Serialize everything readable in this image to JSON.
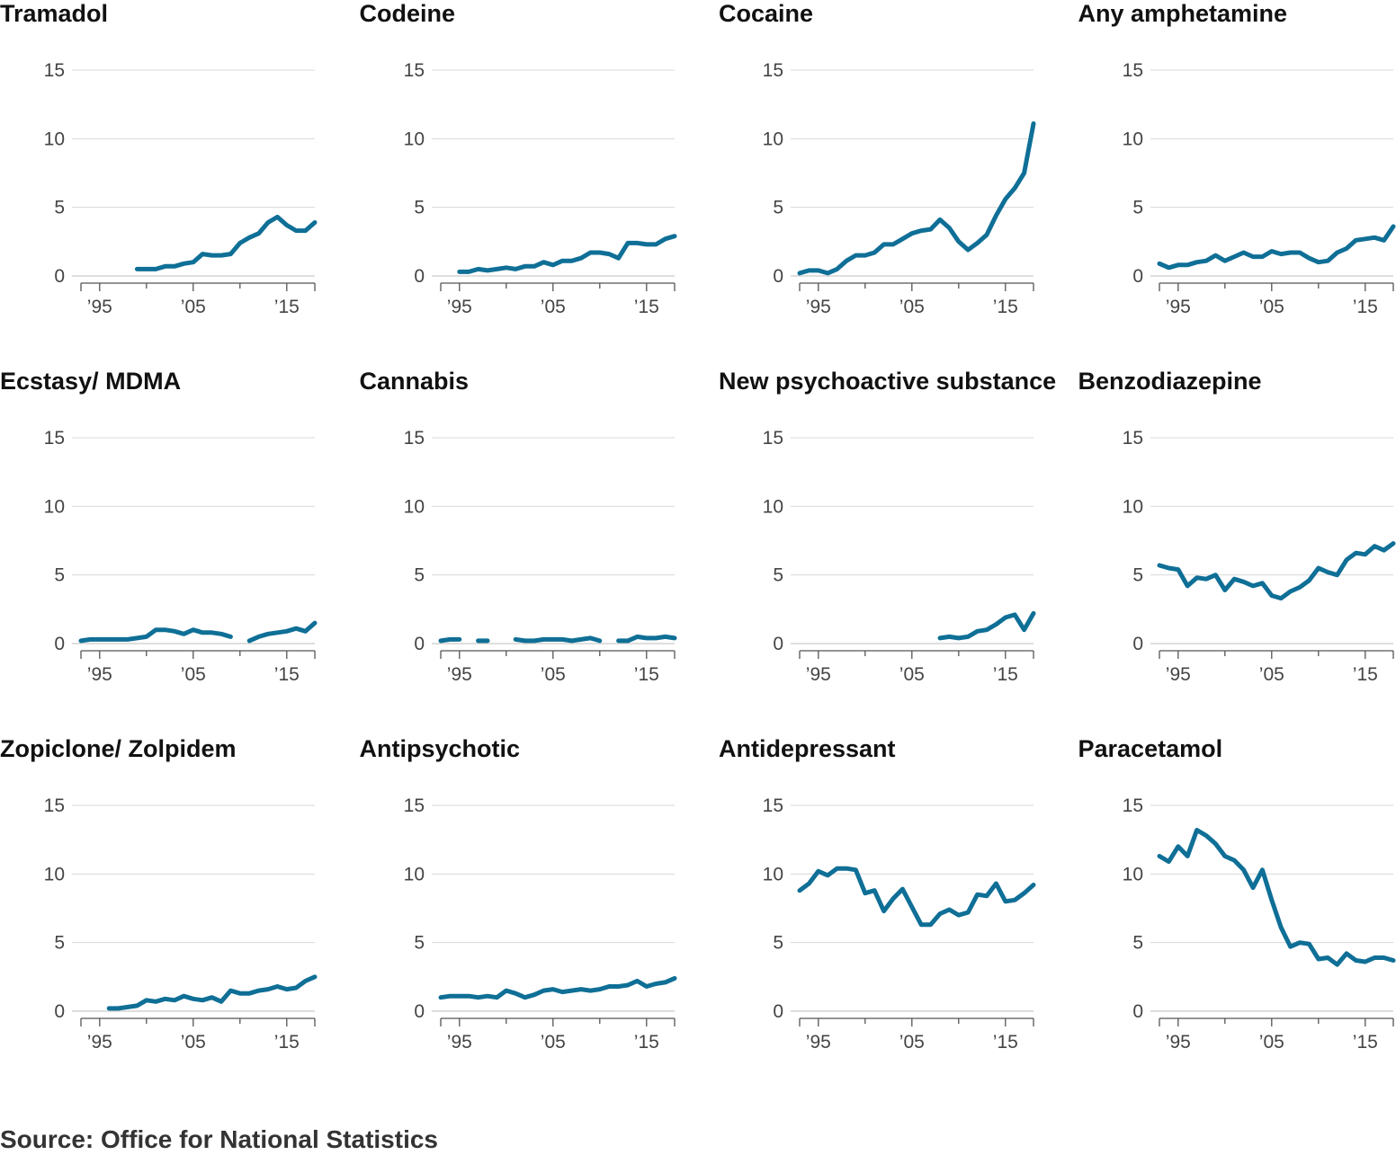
{
  "source": "Source: Office for National Statistics",
  "colors": {
    "line": "#0f6f96",
    "grid": "#d9d9d9",
    "axis": "#555555"
  },
  "chart_data": [
    {
      "type": "line",
      "title": "Tramadol",
      "ylim": [
        0,
        15
      ],
      "yticks": [
        0,
        5,
        10,
        15
      ],
      "xlim": [
        1993,
        2018
      ],
      "xticks": [
        1995,
        2005,
        2015
      ],
      "xtick_labels": [
        "’95",
        "’05",
        "’15"
      ],
      "x": [
        1993,
        1994,
        1995,
        1996,
        1997,
        1998,
        1999,
        2000,
        2001,
        2002,
        2003,
        2004,
        2005,
        2006,
        2007,
        2008,
        2009,
        2010,
        2011,
        2012,
        2013,
        2014,
        2015,
        2016,
        2017,
        2018
      ],
      "values": [
        null,
        null,
        null,
        null,
        null,
        null,
        0.5,
        0.5,
        0.5,
        0.7,
        0.7,
        0.9,
        1.0,
        1.6,
        1.5,
        1.5,
        1.6,
        2.4,
        2.8,
        3.1,
        3.9,
        4.3,
        3.7,
        3.3,
        3.3,
        3.9
      ]
    },
    {
      "type": "line",
      "title": "Codeine",
      "ylim": [
        0,
        15
      ],
      "yticks": [
        0,
        5,
        10,
        15
      ],
      "xlim": [
        1993,
        2018
      ],
      "xticks": [
        1995,
        2005,
        2015
      ],
      "xtick_labels": [
        "’95",
        "’05",
        "’15"
      ],
      "x": [
        1993,
        1994,
        1995,
        1996,
        1997,
        1998,
        1999,
        2000,
        2001,
        2002,
        2003,
        2004,
        2005,
        2006,
        2007,
        2008,
        2009,
        2010,
        2011,
        2012,
        2013,
        2014,
        2015,
        2016,
        2017,
        2018
      ],
      "values": [
        null,
        null,
        0.3,
        0.3,
        0.5,
        0.4,
        0.5,
        0.6,
        0.5,
        0.7,
        0.7,
        1.0,
        0.8,
        1.1,
        1.1,
        1.3,
        1.7,
        1.7,
        1.6,
        1.3,
        2.4,
        2.4,
        2.3,
        2.3,
        2.7,
        2.9
      ]
    },
    {
      "type": "line",
      "title": "Cocaine",
      "ylim": [
        0,
        15
      ],
      "yticks": [
        0,
        5,
        10,
        15
      ],
      "xlim": [
        1993,
        2018
      ],
      "xticks": [
        1995,
        2005,
        2015
      ],
      "xtick_labels": [
        "’95",
        "’05",
        "’15"
      ],
      "x": [
        1993,
        1994,
        1995,
        1996,
        1997,
        1998,
        1999,
        2000,
        2001,
        2002,
        2003,
        2004,
        2005,
        2006,
        2007,
        2008,
        2009,
        2010,
        2011,
        2012,
        2013,
        2014,
        2015,
        2016,
        2017,
        2018
      ],
      "values": [
        0.2,
        0.4,
        0.4,
        0.2,
        0.5,
        1.1,
        1.5,
        1.5,
        1.7,
        2.3,
        2.3,
        2.7,
        3.1,
        3.3,
        3.4,
        4.1,
        3.5,
        2.5,
        1.9,
        2.4,
        3.0,
        4.4,
        5.6,
        6.4,
        7.5,
        11.1
      ]
    },
    {
      "type": "line",
      "title": "Any amphetamine",
      "ylim": [
        0,
        15
      ],
      "yticks": [
        0,
        5,
        10,
        15
      ],
      "xlim": [
        1993,
        2018
      ],
      "xticks": [
        1995,
        2005,
        2015
      ],
      "xtick_labels": [
        "’95",
        "’05",
        "’15"
      ],
      "x": [
        1993,
        1994,
        1995,
        1996,
        1997,
        1998,
        1999,
        2000,
        2001,
        2002,
        2003,
        2004,
        2005,
        2006,
        2007,
        2008,
        2009,
        2010,
        2011,
        2012,
        2013,
        2014,
        2015,
        2016,
        2017,
        2018
      ],
      "values": [
        0.9,
        0.6,
        0.8,
        0.8,
        1.0,
        1.1,
        1.5,
        1.1,
        1.4,
        1.7,
        1.4,
        1.4,
        1.8,
        1.6,
        1.7,
        1.7,
        1.3,
        1.0,
        1.1,
        1.7,
        2.0,
        2.6,
        2.7,
        2.8,
        2.6,
        3.6
      ]
    },
    {
      "type": "line",
      "title": "Ecstasy/ MDMA",
      "ylim": [
        0,
        15
      ],
      "yticks": [
        0,
        5,
        10,
        15
      ],
      "xlim": [
        1993,
        2018
      ],
      "xticks": [
        1995,
        2005,
        2015
      ],
      "xtick_labels": [
        "’95",
        "’05",
        "’15"
      ],
      "x": [
        1993,
        1994,
        1995,
        1996,
        1997,
        1998,
        1999,
        2000,
        2001,
        2002,
        2003,
        2004,
        2005,
        2006,
        2007,
        2008,
        2009,
        2010,
        2011,
        2012,
        2013,
        2014,
        2015,
        2016,
        2017,
        2018
      ],
      "values": [
        0.2,
        0.3,
        0.3,
        0.3,
        0.3,
        0.3,
        0.4,
        0.5,
        1.0,
        1.0,
        0.9,
        0.7,
        1.0,
        0.8,
        0.8,
        0.7,
        0.5,
        null,
        0.2,
        0.5,
        0.7,
        0.8,
        0.9,
        1.1,
        0.9,
        1.5
      ]
    },
    {
      "type": "line",
      "title": "Cannabis",
      "ylim": [
        0,
        15
      ],
      "yticks": [
        0,
        5,
        10,
        15
      ],
      "xlim": [
        1993,
        2018
      ],
      "xticks": [
        1995,
        2005,
        2015
      ],
      "xtick_labels": [
        "’95",
        "’05",
        "’15"
      ],
      "x": [
        1993,
        1994,
        1995,
        1996,
        1997,
        1998,
        1999,
        2000,
        2001,
        2002,
        2003,
        2004,
        2005,
        2006,
        2007,
        2008,
        2009,
        2010,
        2011,
        2012,
        2013,
        2014,
        2015,
        2016,
        2017,
        2018
      ],
      "values": [
        0.2,
        0.3,
        0.3,
        null,
        0.2,
        0.2,
        null,
        null,
        0.3,
        0.2,
        0.2,
        0.3,
        0.3,
        0.3,
        0.2,
        0.3,
        0.4,
        0.2,
        null,
        0.2,
        0.2,
        0.5,
        0.4,
        0.4,
        0.5,
        0.4
      ]
    },
    {
      "type": "line",
      "title": "New psychoactive substance",
      "ylim": [
        0,
        15
      ],
      "yticks": [
        0,
        5,
        10,
        15
      ],
      "xlim": [
        1993,
        2018
      ],
      "xticks": [
        1995,
        2005,
        2015
      ],
      "xtick_labels": [
        "’95",
        "’05",
        "’15"
      ],
      "x": [
        1993,
        1994,
        1995,
        1996,
        1997,
        1998,
        1999,
        2000,
        2001,
        2002,
        2003,
        2004,
        2005,
        2006,
        2007,
        2008,
        2009,
        2010,
        2011,
        2012,
        2013,
        2014,
        2015,
        2016,
        2017,
        2018
      ],
      "values": [
        null,
        null,
        null,
        null,
        null,
        null,
        null,
        null,
        null,
        null,
        null,
        null,
        null,
        null,
        null,
        0.4,
        0.5,
        0.4,
        0.5,
        0.9,
        1.0,
        1.4,
        1.9,
        2.1,
        1.0,
        2.2
      ]
    },
    {
      "type": "line",
      "title": "Benzodiazepine",
      "ylim": [
        0,
        15
      ],
      "yticks": [
        0,
        5,
        10,
        15
      ],
      "xlim": [
        1993,
        2018
      ],
      "xticks": [
        1995,
        2005,
        2015
      ],
      "xtick_labels": [
        "’95",
        "’05",
        "’15"
      ],
      "x": [
        1993,
        1994,
        1995,
        1996,
        1997,
        1998,
        1999,
        2000,
        2001,
        2002,
        2003,
        2004,
        2005,
        2006,
        2007,
        2008,
        2009,
        2010,
        2011,
        2012,
        2013,
        2014,
        2015,
        2016,
        2017,
        2018
      ],
      "values": [
        5.7,
        5.5,
        5.4,
        4.2,
        4.8,
        4.7,
        5.0,
        3.9,
        4.7,
        4.5,
        4.2,
        4.4,
        3.5,
        3.3,
        3.8,
        4.1,
        4.6,
        5.5,
        5.2,
        5.0,
        6.1,
        6.6,
        6.5,
        7.1,
        6.8,
        7.3
      ]
    },
    {
      "type": "line",
      "title": "Zopiclone/ Zolpidem",
      "ylim": [
        0,
        15
      ],
      "yticks": [
        0,
        5,
        10,
        15
      ],
      "xlim": [
        1993,
        2018
      ],
      "xticks": [
        1995,
        2005,
        2015
      ],
      "xtick_labels": [
        "’95",
        "’05",
        "’15"
      ],
      "x": [
        1993,
        1994,
        1995,
        1996,
        1997,
        1998,
        1999,
        2000,
        2001,
        2002,
        2003,
        2004,
        2005,
        2006,
        2007,
        2008,
        2009,
        2010,
        2011,
        2012,
        2013,
        2014,
        2015,
        2016,
        2017,
        2018
      ],
      "values": [
        null,
        null,
        null,
        0.2,
        0.2,
        0.3,
        0.4,
        0.8,
        0.7,
        0.9,
        0.8,
        1.1,
        0.9,
        0.8,
        1.0,
        0.7,
        1.5,
        1.3,
        1.3,
        1.5,
        1.6,
        1.8,
        1.6,
        1.7,
        2.2,
        2.5
      ]
    },
    {
      "type": "line",
      "title": "Antipsychotic",
      "ylim": [
        0,
        15
      ],
      "yticks": [
        0,
        5,
        10,
        15
      ],
      "xlim": [
        1993,
        2018
      ],
      "xticks": [
        1995,
        2005,
        2015
      ],
      "xtick_labels": [
        "’95",
        "’05",
        "’15"
      ],
      "x": [
        1993,
        1994,
        1995,
        1996,
        1997,
        1998,
        1999,
        2000,
        2001,
        2002,
        2003,
        2004,
        2005,
        2006,
        2007,
        2008,
        2009,
        2010,
        2011,
        2012,
        2013,
        2014,
        2015,
        2016,
        2017,
        2018
      ],
      "values": [
        1.0,
        1.1,
        1.1,
        1.1,
        1.0,
        1.1,
        1.0,
        1.5,
        1.3,
        1.0,
        1.2,
        1.5,
        1.6,
        1.4,
        1.5,
        1.6,
        1.5,
        1.6,
        1.8,
        1.8,
        1.9,
        2.2,
        1.8,
        2.0,
        2.1,
        2.4
      ]
    },
    {
      "type": "line",
      "title": "Antidepressant",
      "ylim": [
        0,
        15
      ],
      "yticks": [
        0,
        5,
        10,
        15
      ],
      "xlim": [
        1993,
        2018
      ],
      "xticks": [
        1995,
        2005,
        2015
      ],
      "xtick_labels": [
        "’95",
        "’05",
        "’15"
      ],
      "x": [
        1993,
        1994,
        1995,
        1996,
        1997,
        1998,
        1999,
        2000,
        2001,
        2002,
        2003,
        2004,
        2005,
        2006,
        2007,
        2008,
        2009,
        2010,
        2011,
        2012,
        2013,
        2014,
        2015,
        2016,
        2017,
        2018
      ],
      "values": [
        8.8,
        9.3,
        10.2,
        9.9,
        10.4,
        10.4,
        10.3,
        8.6,
        8.8,
        7.3,
        8.2,
        8.9,
        7.6,
        6.3,
        6.3,
        7.1,
        7.4,
        7.0,
        7.2,
        8.5,
        8.4,
        9.3,
        8.0,
        8.1,
        8.6,
        9.2
      ]
    },
    {
      "type": "line",
      "title": "Paracetamol",
      "ylim": [
        0,
        15
      ],
      "yticks": [
        0,
        5,
        10,
        15
      ],
      "xlim": [
        1993,
        2018
      ],
      "xticks": [
        1995,
        2005,
        2015
      ],
      "xtick_labels": [
        "’95",
        "’05",
        "’15"
      ],
      "x": [
        1993,
        1994,
        1995,
        1996,
        1997,
        1998,
        1999,
        2000,
        2001,
        2002,
        2003,
        2004,
        2005,
        2006,
        2007,
        2008,
        2009,
        2010,
        2011,
        2012,
        2013,
        2014,
        2015,
        2016,
        2017,
        2018
      ],
      "values": [
        11.3,
        10.9,
        12.0,
        11.3,
        13.2,
        12.8,
        12.2,
        11.3,
        11.0,
        10.3,
        9.0,
        10.3,
        8.1,
        6.1,
        4.7,
        5.0,
        4.9,
        3.8,
        3.9,
        3.4,
        4.2,
        3.7,
        3.6,
        3.9,
        3.9,
        3.7
      ]
    }
  ]
}
